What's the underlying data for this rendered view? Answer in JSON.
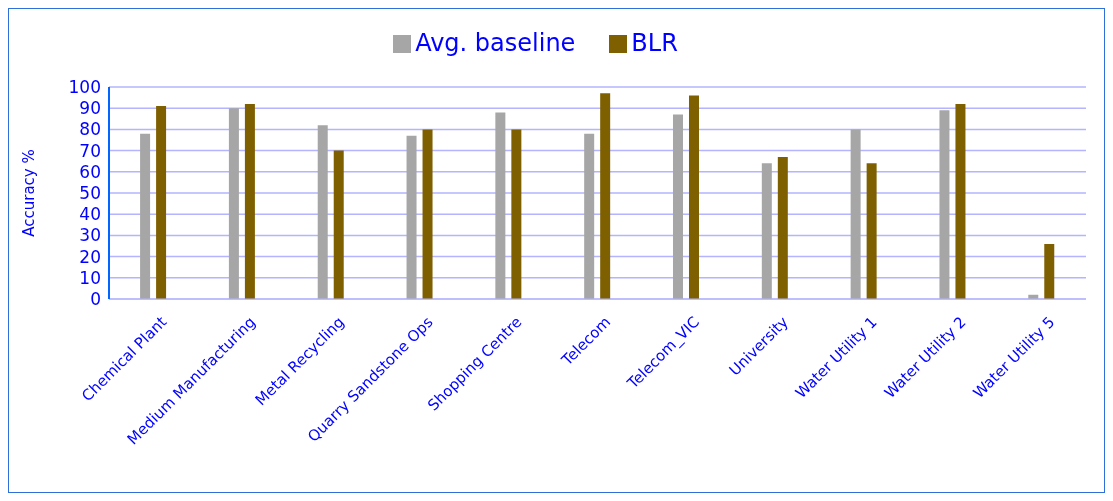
{
  "chart_data": {
    "type": "bar",
    "ylabel": "Accuracy %",
    "categories": [
      "Chemical Plant",
      "Medium Manufacturing",
      "Metal Recycling",
      "Quarry Sandstone Ops",
      "Shopping Centre",
      "Telecom",
      "Telecom_VIC",
      "University",
      "Water Utility 1",
      "Water Utility 2",
      "Water Utility 5"
    ],
    "series": [
      {
        "name": "Avg. baseline",
        "color": "#a6a6a6",
        "values": [
          78,
          90,
          82,
          77,
          88,
          78,
          87,
          64,
          80,
          89,
          2
        ]
      },
      {
        "name": "BLR",
        "color": "#7f6000",
        "values": [
          91,
          92,
          70,
          80,
          80,
          97,
          96,
          67,
          64,
          92,
          26
        ]
      }
    ],
    "ylim": [
      0,
      100
    ],
    "yticks": [
      0,
      10,
      20,
      30,
      40,
      50,
      60,
      70,
      80,
      90,
      100
    ],
    "grid": "y",
    "legend": "top"
  }
}
